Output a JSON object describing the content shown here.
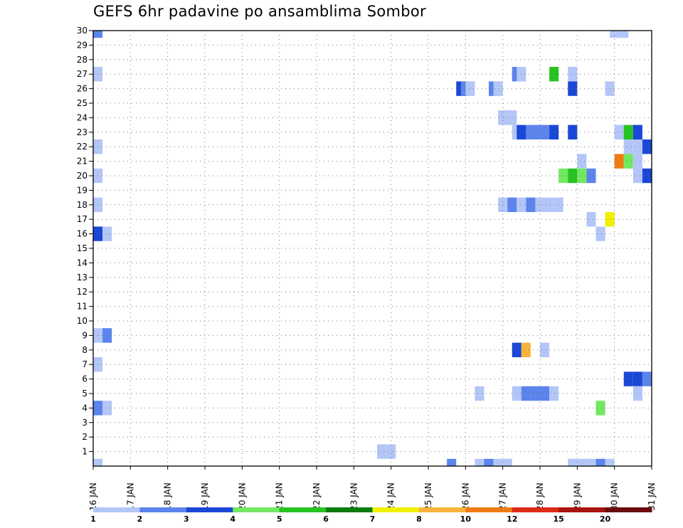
{
  "chart_data": {
    "type": "heatmap",
    "title": "GEFS 6hr padavine po ansamblima Sombor",
    "xlabel": "",
    "ylabel": "",
    "x_tick_labels": [
      "16 JAN",
      "17 JAN",
      "18 JAN",
      "19 JAN",
      "20 JAN",
      "21 JAN",
      "22 JAN",
      "23 JAN",
      "24 JAN",
      "25 JAN",
      "26 JAN",
      "27 JAN",
      "28 JAN",
      "29 JAN",
      "30 JAN",
      "31 JAN"
    ],
    "y_tick_labels": [
      "1",
      "2",
      "3",
      "4",
      "5",
      "6",
      "7",
      "8",
      "9",
      "10",
      "11",
      "12",
      "13",
      "14",
      "15",
      "16",
      "17",
      "18",
      "19",
      "20",
      "21",
      "22",
      "23",
      "24",
      "25",
      "26",
      "27",
      "28",
      "29",
      "30"
    ],
    "x_range_days": [
      16,
      31
    ],
    "y_range_members": [
      0,
      30
    ],
    "step_hours": 6,
    "colorbar": {
      "labels": [
        "1",
        "2",
        "3",
        "4",
        "5",
        "6",
        "7",
        "8",
        "10",
        "12",
        "15",
        "20"
      ],
      "colors": [
        "#b3c6f7",
        "#5b84ec",
        "#1b47d6",
        "#72e860",
        "#27c421",
        "#0f7a0f",
        "#f0f000",
        "#f7b43c",
        "#ef7c12",
        "#dd2a17",
        "#a8140f",
        "#6b0a0a"
      ]
    },
    "legend_position": "bottom",
    "grid": true,
    "cells": [
      {
        "member": 30,
        "day": 16.125,
        "level": 2
      },
      {
        "member": 30,
        "day": 30.0,
        "level": 1
      },
      {
        "member": 30,
        "day": 30.125,
        "level": 1
      },
      {
        "member": 30,
        "day": 30.25,
        "level": 1
      },
      {
        "member": 27,
        "day": 16.125,
        "level": 1
      },
      {
        "member": 27,
        "day": 27.375,
        "level": 2
      },
      {
        "member": 27,
        "day": 27.5,
        "level": 1
      },
      {
        "member": 27,
        "day": 28.375,
        "level": 5
      },
      {
        "member": 27,
        "day": 28.875,
        "level": 1
      },
      {
        "member": 26,
        "day": 25.875,
        "level": 3
      },
      {
        "member": 26,
        "day": 26.0,
        "level": 2
      },
      {
        "member": 26,
        "day": 26.125,
        "level": 1
      },
      {
        "member": 26,
        "day": 26.75,
        "level": 2
      },
      {
        "member": 26,
        "day": 26.875,
        "level": 1
      },
      {
        "member": 26,
        "day": 28.875,
        "level": 3
      },
      {
        "member": 26,
        "day": 29.875,
        "level": 1
      },
      {
        "member": 24,
        "day": 27.0,
        "level": 1
      },
      {
        "member": 24,
        "day": 27.125,
        "level": 1
      },
      {
        "member": 24,
        "day": 27.25,
        "level": 1
      },
      {
        "member": 23,
        "day": 27.375,
        "level": 1
      },
      {
        "member": 23,
        "day": 27.5,
        "level": 3
      },
      {
        "member": 23,
        "day": 27.75,
        "level": 2
      },
      {
        "member": 23,
        "day": 27.875,
        "level": 2
      },
      {
        "member": 23,
        "day": 28.0,
        "level": 2
      },
      {
        "member": 23,
        "day": 28.125,
        "level": 2
      },
      {
        "member": 23,
        "day": 28.375,
        "level": 3
      },
      {
        "member": 23,
        "day": 28.875,
        "level": 3
      },
      {
        "member": 23,
        "day": 30.125,
        "level": 1
      },
      {
        "member": 23,
        "day": 30.375,
        "level": 5
      },
      {
        "member": 23,
        "day": 30.625,
        "level": 3
      },
      {
        "member": 22,
        "day": 16.125,
        "level": 1
      },
      {
        "member": 22,
        "day": 30.375,
        "level": 1
      },
      {
        "member": 22,
        "day": 30.625,
        "level": 1
      },
      {
        "member": 22,
        "day": 30.875,
        "level": 3
      },
      {
        "member": 21,
        "day": 29.125,
        "level": 1
      },
      {
        "member": 21,
        "day": 30.125,
        "level": 9
      },
      {
        "member": 21,
        "day": 30.375,
        "level": 4
      },
      {
        "member": 21,
        "day": 30.625,
        "level": 1
      },
      {
        "member": 20,
        "day": 16.125,
        "level": 1
      },
      {
        "member": 20,
        "day": 28.625,
        "level": 4
      },
      {
        "member": 20,
        "day": 28.875,
        "level": 5
      },
      {
        "member": 20,
        "day": 29.125,
        "level": 4
      },
      {
        "member": 20,
        "day": 29.375,
        "level": 2
      },
      {
        "member": 20,
        "day": 30.625,
        "level": 1
      },
      {
        "member": 20,
        "day": 30.875,
        "level": 3
      },
      {
        "member": 18,
        "day": 16.125,
        "level": 1
      },
      {
        "member": 18,
        "day": 27.0,
        "level": 1
      },
      {
        "member": 18,
        "day": 27.25,
        "level": 2
      },
      {
        "member": 18,
        "day": 27.5,
        "level": 1
      },
      {
        "member": 18,
        "day": 27.75,
        "level": 2
      },
      {
        "member": 18,
        "day": 28.0,
        "level": 1
      },
      {
        "member": 18,
        "day": 28.25,
        "level": 1
      },
      {
        "member": 18,
        "day": 28.5,
        "level": 1
      },
      {
        "member": 17,
        "day": 29.375,
        "level": 1
      },
      {
        "member": 17,
        "day": 29.875,
        "level": 7
      },
      {
        "member": 16,
        "day": 16.125,
        "level": 3
      },
      {
        "member": 16,
        "day": 16.375,
        "level": 1
      },
      {
        "member": 16,
        "day": 29.625,
        "level": 1
      },
      {
        "member": 9,
        "day": 16.125,
        "level": 1
      },
      {
        "member": 9,
        "day": 16.375,
        "level": 2
      },
      {
        "member": 8,
        "day": 27.375,
        "level": 3
      },
      {
        "member": 8,
        "day": 27.625,
        "level": 8
      },
      {
        "member": 8,
        "day": 28.125,
        "level": 1
      },
      {
        "member": 7,
        "day": 16.125,
        "level": 1
      },
      {
        "member": 6,
        "day": 30.375,
        "level": 3
      },
      {
        "member": 6,
        "day": 30.625,
        "level": 3
      },
      {
        "member": 6,
        "day": 30.875,
        "level": 2
      },
      {
        "member": 5,
        "day": 26.375,
        "level": 1
      },
      {
        "member": 5,
        "day": 27.375,
        "level": 1
      },
      {
        "member": 5,
        "day": 27.625,
        "level": 2
      },
      {
        "member": 5,
        "day": 27.875,
        "level": 2
      },
      {
        "member": 5,
        "day": 28.125,
        "level": 2
      },
      {
        "member": 5,
        "day": 28.375,
        "level": 1
      },
      {
        "member": 5,
        "day": 30.625,
        "level": 1
      },
      {
        "member": 4,
        "day": 16.125,
        "level": 2
      },
      {
        "member": 4,
        "day": 16.375,
        "level": 1
      },
      {
        "member": 4,
        "day": 29.625,
        "level": 4
      },
      {
        "member": 1,
        "day": 23.75,
        "level": 1
      },
      {
        "member": 1,
        "day": 24.0,
        "level": 1
      },
      {
        "member": 0,
        "day": 16.125,
        "level": 1
      },
      {
        "member": 0,
        "day": 25.625,
        "level": 2
      },
      {
        "member": 0,
        "day": 26.375,
        "level": 1
      },
      {
        "member": 0,
        "day": 26.625,
        "level": 2
      },
      {
        "member": 0,
        "day": 26.875,
        "level": 1
      },
      {
        "member": 0,
        "day": 27.125,
        "level": 1
      },
      {
        "member": 0,
        "day": 28.875,
        "level": 1
      },
      {
        "member": 0,
        "day": 29.125,
        "level": 1
      },
      {
        "member": 0,
        "day": 29.375,
        "level": 1
      },
      {
        "member": 0,
        "day": 29.625,
        "level": 2
      },
      {
        "member": 0,
        "day": 29.875,
        "level": 1
      }
    ]
  }
}
